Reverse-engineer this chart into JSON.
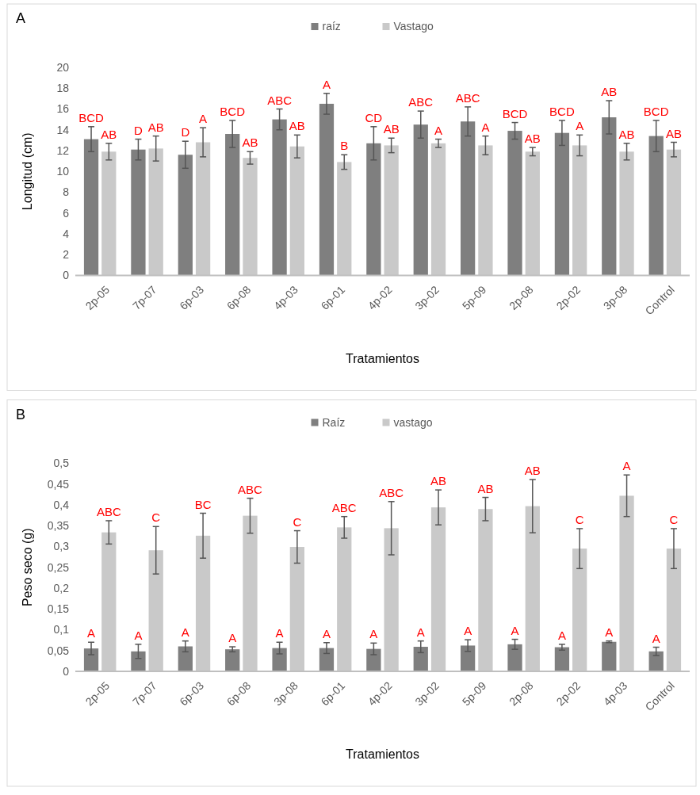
{
  "chart_data": [
    {
      "type": "bar",
      "title": "A",
      "xlabel": "Tratamientos",
      "ylabel": "Longitud (cm)",
      "legend": "top",
      "ylim": [
        0,
        20
      ],
      "yticks": [
        0,
        2,
        4,
        6,
        8,
        10,
        12,
        14,
        16,
        18,
        20
      ],
      "grid": false,
      "categories": [
        "2p-05",
        "7p-07",
        "6p-03",
        "6p-08",
        "4p-03",
        "6p-01",
        "4p-02",
        "3p-02",
        "5p-09",
        "2p-08",
        "2p-02",
        "3p-08",
        "Control"
      ],
      "series": [
        {
          "name": "raíz",
          "color": "#7f7f7f",
          "values": [
            13.1,
            12.1,
            11.6,
            13.6,
            15.0,
            16.5,
            12.7,
            14.5,
            14.8,
            13.9,
            13.7,
            15.2,
            13.4
          ],
          "errors": [
            1.2,
            1.0,
            1.3,
            1.3,
            1.0,
            1.0,
            1.6,
            1.3,
            1.4,
            0.8,
            1.2,
            1.6,
            1.5
          ],
          "value_labels": [
            "BCD",
            "D",
            "D",
            "BCD",
            "ABC",
            "A",
            "CD",
            "ABC",
            "ABC",
            "BCD",
            "BCD",
            "AB",
            "BCD"
          ]
        },
        {
          "name": "Vastago",
          "color": "#c9c9c9",
          "values": [
            11.9,
            12.2,
            12.8,
            11.3,
            12.4,
            10.9,
            12.5,
            12.7,
            12.5,
            11.9,
            12.5,
            11.9,
            12.1
          ],
          "errors": [
            0.8,
            1.2,
            1.4,
            0.6,
            1.1,
            0.7,
            0.7,
            0.4,
            0.9,
            0.4,
            1.0,
            0.8,
            0.7
          ],
          "value_labels": [
            "AB",
            "AB",
            "A",
            "AB",
            "AB",
            "B",
            "AB",
            "A",
            "A",
            "AB",
            "A",
            "AB",
            "AB"
          ]
        }
      ]
    },
    {
      "type": "bar",
      "title": "B",
      "xlabel": "Tratamientos",
      "ylabel": "Peso seco (g)",
      "legend": "top",
      "ylim": [
        0,
        0.5
      ],
      "yticks": [
        {
          "value": 0,
          "label": "0"
        },
        {
          "value": 0.05,
          "label": "0,05"
        },
        {
          "value": 0.1,
          "label": "0,1"
        },
        {
          "value": 0.15,
          "label": "0,15"
        },
        {
          "value": 0.2,
          "label": "0,2"
        },
        {
          "value": 0.25,
          "label": "0,25"
        },
        {
          "value": 0.3,
          "label": "0,3"
        },
        {
          "value": 0.35,
          "label": "0,35"
        },
        {
          "value": 0.4,
          "label": "0,4"
        },
        {
          "value": 0.45,
          "label": "0,45"
        },
        {
          "value": 0.5,
          "label": "0,5"
        }
      ],
      "grid": false,
      "categories": [
        "2p-05",
        "7p-07",
        "6p-03",
        "6p-08",
        "3p-08",
        "6p-01",
        "4p-02",
        "3p-02",
        "5p-09",
        "2p-08",
        "2p-02",
        "4p-03",
        "Control"
      ],
      "series": [
        {
          "name": "Raíz",
          "color": "#7f7f7f",
          "values": [
            0.055,
            0.048,
            0.06,
            0.053,
            0.056,
            0.056,
            0.054,
            0.059,
            0.062,
            0.065,
            0.058,
            0.071,
            0.048
          ],
          "errors": [
            0.015,
            0.017,
            0.013,
            0.006,
            0.014,
            0.013,
            0.014,
            0.014,
            0.014,
            0.012,
            0.007,
            0.002,
            0.01
          ],
          "value_labels": [
            "A",
            "A",
            "A",
            "A",
            "A",
            "A",
            "A",
            "A",
            "A",
            "A",
            "A",
            "A",
            "A"
          ]
        },
        {
          "name": "vastago",
          "color": "#c9c9c9",
          "values": [
            0.334,
            0.291,
            0.326,
            0.374,
            0.299,
            0.346,
            0.344,
            0.394,
            0.39,
            0.397,
            0.295,
            0.422,
            0.295
          ],
          "errors": [
            0.028,
            0.057,
            0.054,
            0.042,
            0.039,
            0.026,
            0.064,
            0.042,
            0.028,
            0.064,
            0.048,
            0.05,
            0.048
          ],
          "value_labels": [
            "ABC",
            "C",
            "BC",
            "ABC",
            "C",
            "ABC",
            "ABC",
            "AB",
            "AB",
            "AB",
            "C",
            "A",
            "C"
          ]
        }
      ]
    }
  ]
}
